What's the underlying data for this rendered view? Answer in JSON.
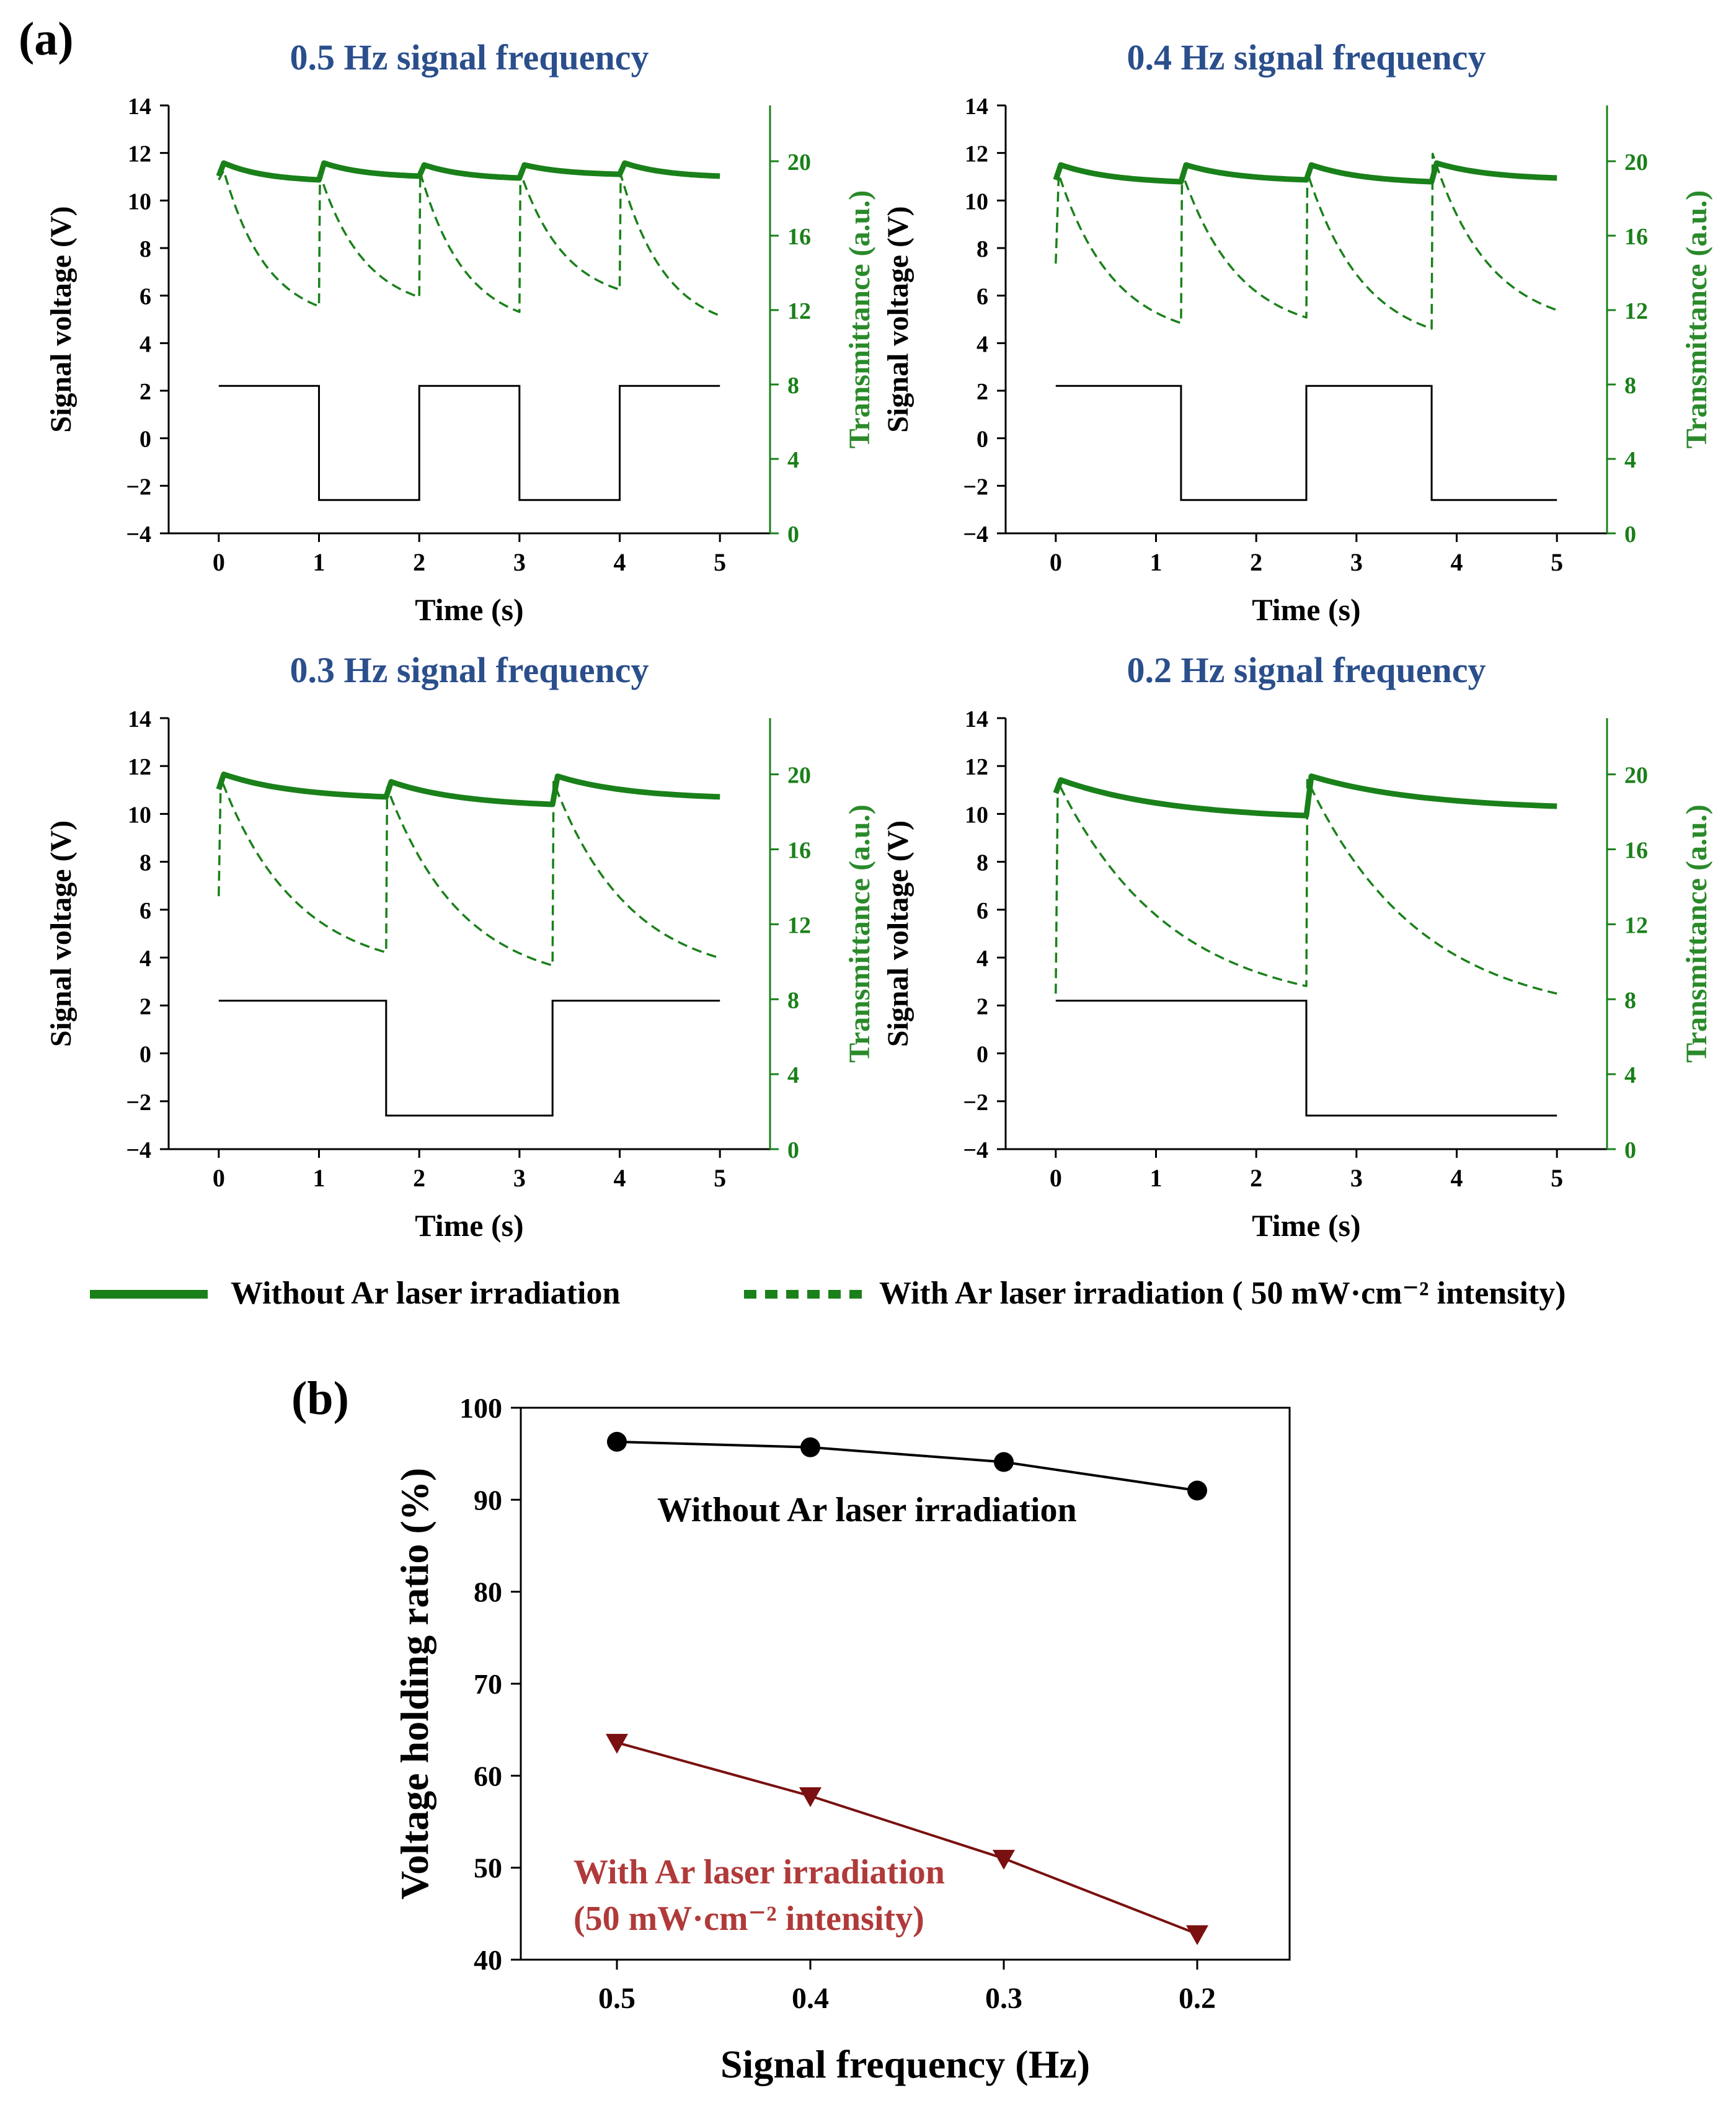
{
  "figure": {
    "panel_a_label": "(a)",
    "panel_b_label": "(b)",
    "legend": {
      "solid_label": "Without Ar laser irradiation",
      "dashed_label": "With Ar laser irradiation ( 50 mW·cm⁻² intensity)"
    }
  },
  "colors": {
    "green": "#1a801a",
    "green_label": "#2a8a2a",
    "blue_title": "#2b4f8c",
    "black": "#000000",
    "dark_red": "#7a1010",
    "red_label": "#b03a3a"
  },
  "chart_data": [
    {
      "type": "line",
      "title": "0.5 Hz signal frequency",
      "xlabel": "Time (s)",
      "ylabel": "Signal voltage (V)",
      "y2label": "Transmittance (a.u.)",
      "xlim": [
        -0.5,
        5.5
      ],
      "ylim": [
        -4,
        14
      ],
      "y2lim": [
        0,
        23
      ],
      "xticks": [
        0,
        1,
        2,
        3,
        4,
        5
      ],
      "yticks": [
        -4,
        -2,
        0,
        2,
        4,
        6,
        8,
        10,
        12,
        14
      ],
      "y2ticks": [
        0,
        4,
        8,
        12,
        16,
        20
      ],
      "signal_voltage": {
        "x": [
          0,
          1,
          1,
          2,
          2,
          3,
          3,
          4,
          4,
          5
        ],
        "y": [
          2.2,
          2.2,
          -2.6,
          -2.6,
          2.2,
          2.2,
          -2.6,
          -2.6,
          2.2,
          2.2
        ]
      },
      "series": [
        {
          "name": "Without Ar laser irradiation",
          "axis": "right",
          "style": "solid",
          "x": [
            0,
            0.05,
            1,
            1.05,
            2,
            2.05,
            3,
            3.05,
            4,
            4.05,
            5
          ],
          "values": [
            19.2,
            19.9,
            19.0,
            19.9,
            19.2,
            19.8,
            19.1,
            19.8,
            19.3,
            19.9,
            19.2
          ]
        },
        {
          "name": "With Ar laser irradiation",
          "axis": "right",
          "style": "dashed",
          "x": [
            0,
            0.05,
            1,
            1.01,
            2,
            2.01,
            3,
            3.01,
            4,
            4.01,
            5
          ],
          "values": [
            19.0,
            19.5,
            12.2,
            19.3,
            12.7,
            19.4,
            11.9,
            19.4,
            13.1,
            19.3,
            11.7
          ]
        }
      ]
    },
    {
      "type": "line",
      "title": "0.4 Hz signal frequency",
      "xlabel": "Time (s)",
      "ylabel": "Signal voltage (V)",
      "y2label": "Transmittance (a.u.)",
      "xlim": [
        -0.5,
        5.5
      ],
      "ylim": [
        -4,
        14
      ],
      "y2lim": [
        0,
        23
      ],
      "xticks": [
        0,
        1,
        2,
        3,
        4,
        5
      ],
      "yticks": [
        -4,
        -2,
        0,
        2,
        4,
        6,
        8,
        10,
        12,
        14
      ],
      "y2ticks": [
        0,
        4,
        8,
        12,
        16,
        20
      ],
      "signal_voltage": {
        "x": [
          0,
          1.25,
          1.25,
          2.5,
          2.5,
          3.75,
          3.75,
          5
        ],
        "y": [
          2.2,
          2.2,
          -2.6,
          -2.6,
          2.2,
          2.2,
          -2.6,
          -2.6
        ]
      },
      "series": [
        {
          "name": "Without Ar laser irradiation",
          "axis": "right",
          "style": "solid",
          "x": [
            0,
            0.05,
            1.25,
            1.3,
            2.5,
            2.55,
            3.75,
            3.8,
            5
          ],
          "values": [
            19.0,
            19.8,
            18.9,
            19.8,
            19.0,
            19.8,
            18.9,
            19.9,
            19.1
          ]
        },
        {
          "name": "With Ar laser irradiation",
          "axis": "right",
          "style": "dashed",
          "x": [
            0,
            0.03,
            1.25,
            1.26,
            2.5,
            2.51,
            3.75,
            3.76,
            5
          ],
          "values": [
            14.5,
            19.3,
            11.3,
            19.4,
            11.6,
            19.4,
            11.0,
            20.4,
            12.0
          ]
        }
      ]
    },
    {
      "type": "line",
      "title": "0.3 Hz signal frequency",
      "xlabel": "Time (s)",
      "ylabel": "Signal voltage (V)",
      "y2label": "Transmittance (a.u.)",
      "xlim": [
        -0.5,
        5.5
      ],
      "ylim": [
        -4,
        14
      ],
      "y2lim": [
        0,
        23
      ],
      "xticks": [
        0,
        1,
        2,
        3,
        4,
        5
      ],
      "yticks": [
        -4,
        -2,
        0,
        2,
        4,
        6,
        8,
        10,
        12,
        14
      ],
      "y2ticks": [
        0,
        4,
        8,
        12,
        16,
        20
      ],
      "signal_voltage": {
        "x": [
          0,
          1.67,
          1.67,
          3.33,
          3.33,
          5
        ],
        "y": [
          2.2,
          2.2,
          -2.6,
          -2.6,
          2.2,
          2.2
        ]
      },
      "series": [
        {
          "name": "Without Ar laser irradiation",
          "axis": "right",
          "style": "solid",
          "x": [
            0,
            0.05,
            1.67,
            1.72,
            3.33,
            3.38,
            5
          ],
          "values": [
            19.2,
            20.0,
            18.8,
            19.6,
            18.4,
            19.9,
            18.8
          ]
        },
        {
          "name": "With Ar laser irradiation",
          "axis": "right",
          "style": "dashed",
          "x": [
            0,
            0.02,
            1.67,
            1.68,
            3.33,
            3.34,
            5
          ],
          "values": [
            13.5,
            19.8,
            10.5,
            19.3,
            9.8,
            19.6,
            10.2
          ]
        }
      ]
    },
    {
      "type": "line",
      "title": "0.2 Hz signal frequency",
      "xlabel": "Time (s)",
      "ylabel": "Signal voltage (V)",
      "y2label": "Transmittance (a.u.)",
      "xlim": [
        -0.5,
        5.5
      ],
      "ylim": [
        -4,
        14
      ],
      "y2lim": [
        0,
        23
      ],
      "xticks": [
        0,
        1,
        2,
        3,
        4,
        5
      ],
      "yticks": [
        -4,
        -2,
        0,
        2,
        4,
        6,
        8,
        10,
        12,
        14
      ],
      "y2ticks": [
        0,
        4,
        8,
        12,
        16,
        20
      ],
      "signal_voltage": {
        "x": [
          0,
          2.5,
          2.5,
          5
        ],
        "y": [
          2.2,
          2.2,
          -2.6,
          -2.6
        ]
      },
      "series": [
        {
          "name": "Without Ar laser irradiation",
          "axis": "right",
          "style": "solid",
          "x": [
            0,
            0.05,
            2.5,
            2.55,
            5
          ],
          "values": [
            19.0,
            19.7,
            17.8,
            19.9,
            18.3
          ]
        },
        {
          "name": "With Ar laser irradiation",
          "axis": "right",
          "style": "dashed",
          "x": [
            0,
            0.02,
            2.5,
            2.51,
            5
          ],
          "values": [
            8.3,
            19.6,
            8.7,
            19.7,
            8.3
          ]
        }
      ]
    },
    {
      "type": "line",
      "title": "",
      "xlabel": "Signal frequency (Hz)",
      "ylabel": "Voltage holding ratio (%)",
      "categories": [
        "0.5",
        "0.4",
        "0.3",
        "0.2"
      ],
      "ylim": [
        40,
        100
      ],
      "yticks": [
        40,
        50,
        60,
        70,
        80,
        90,
        100
      ],
      "series": [
        {
          "name": "Without Ar laser irradiation",
          "marker": "circle",
          "color": "#000000",
          "values": [
            96.3,
            95.7,
            94.1,
            91.0
          ]
        },
        {
          "name": "With Ar laser irradiation",
          "marker": "triangle-down",
          "color": "#7a1010",
          "values": [
            63.6,
            57.8,
            51.0,
            42.8
          ]
        }
      ],
      "annotations": [
        {
          "text": "Without Ar laser irradiation"
        },
        {
          "text": "With Ar laser irradiation"
        },
        {
          "text": "(50 mW·cm⁻² intensity)"
        }
      ]
    }
  ]
}
